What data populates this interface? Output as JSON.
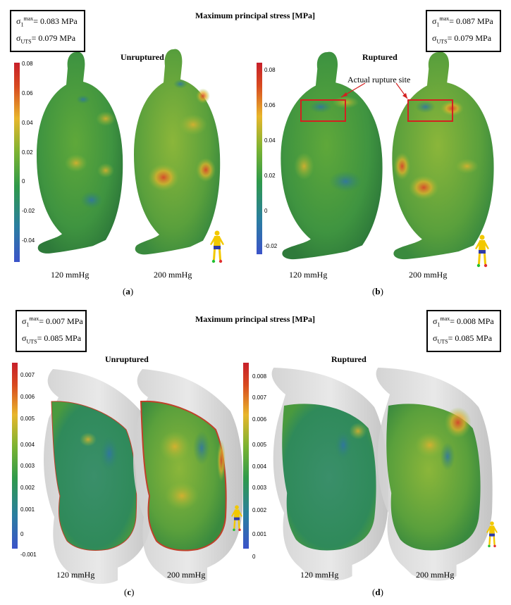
{
  "panel_top": {
    "title": "Maximum principal stress [MPa]",
    "box_left": {
      "sym": "σ",
      "s1": "1",
      "s2": "max",
      "val1": "= 0.083 MPa",
      "uts_sym": "σ",
      "uts_sub": "UTS",
      "val2": "= 0.079 MPa"
    },
    "box_right": {
      "sym": "σ",
      "s1": "1",
      "s2": "max",
      "val1": "= 0.087 MPa",
      "uts_sym": "σ",
      "uts_sub": "UTS",
      "val2": "= 0.079 MPa"
    },
    "a": {
      "subtitle": "Unruptured",
      "ticks": [
        "0.08",
        "0.06",
        "0.04",
        "0.02",
        "0",
        "-0.02",
        "-0.04"
      ],
      "p1": "120 mmHg",
      "p2": "200 mmHg",
      "label_open": "(",
      "label": "a",
      "label_close": ")"
    },
    "b": {
      "subtitle": "Ruptured",
      "ticks": [
        "0.08",
        "0.06",
        "0.04",
        "0.02",
        "0",
        "-0.02"
      ],
      "p1": "120 mmHg",
      "p2": "200 mmHg",
      "annotation": "Actual rupture site",
      "label_open": "(",
      "label": "b",
      "label_close": ")"
    }
  },
  "panel_bottom": {
    "title": "Maximum principal stress [MPa]",
    "box_left": {
      "sym": "σ",
      "s1": "1",
      "s2": "max",
      "val1": "= 0.007 MPa",
      "uts_sym": "σ",
      "uts_sub": "UTS",
      "val2": "= 0.085 MPa"
    },
    "box_right": {
      "sym": "σ",
      "s1": "1",
      "s2": "max",
      "val1": "= 0.008 MPa",
      "uts_sym": "σ",
      "uts_sub": "UTS",
      "val2": "= 0.085 MPa"
    },
    "c": {
      "subtitle": "Unruptured",
      "ticks": [
        "0.007",
        "0.006",
        "0.005",
        "0.004",
        "0.003",
        "0.002",
        "0.001",
        "0",
        "-0.001"
      ],
      "p1": "120 mmHg",
      "p2": "200 mmHg",
      "label_open": "(",
      "label": "c",
      "label_close": ")"
    },
    "d": {
      "subtitle": "Ruptured",
      "ticks": [
        "0.008",
        "0.007",
        "0.006",
        "0.005",
        "0.004",
        "0.003",
        "0.002",
        "0.001",
        "0"
      ],
      "p1": "120 mmHg",
      "p2": "200 mmHg",
      "label_open": "(",
      "label": "d",
      "label_close": ")"
    }
  },
  "colors": {
    "colormap": [
      "#3b53c9",
      "#2a7ea0",
      "#2f9a4a",
      "#7bb332",
      "#e8b62b",
      "#d84a20",
      "#c71f2a"
    ],
    "rupture_marker": "#d42020",
    "wall_grey": "#cfcfcf"
  }
}
